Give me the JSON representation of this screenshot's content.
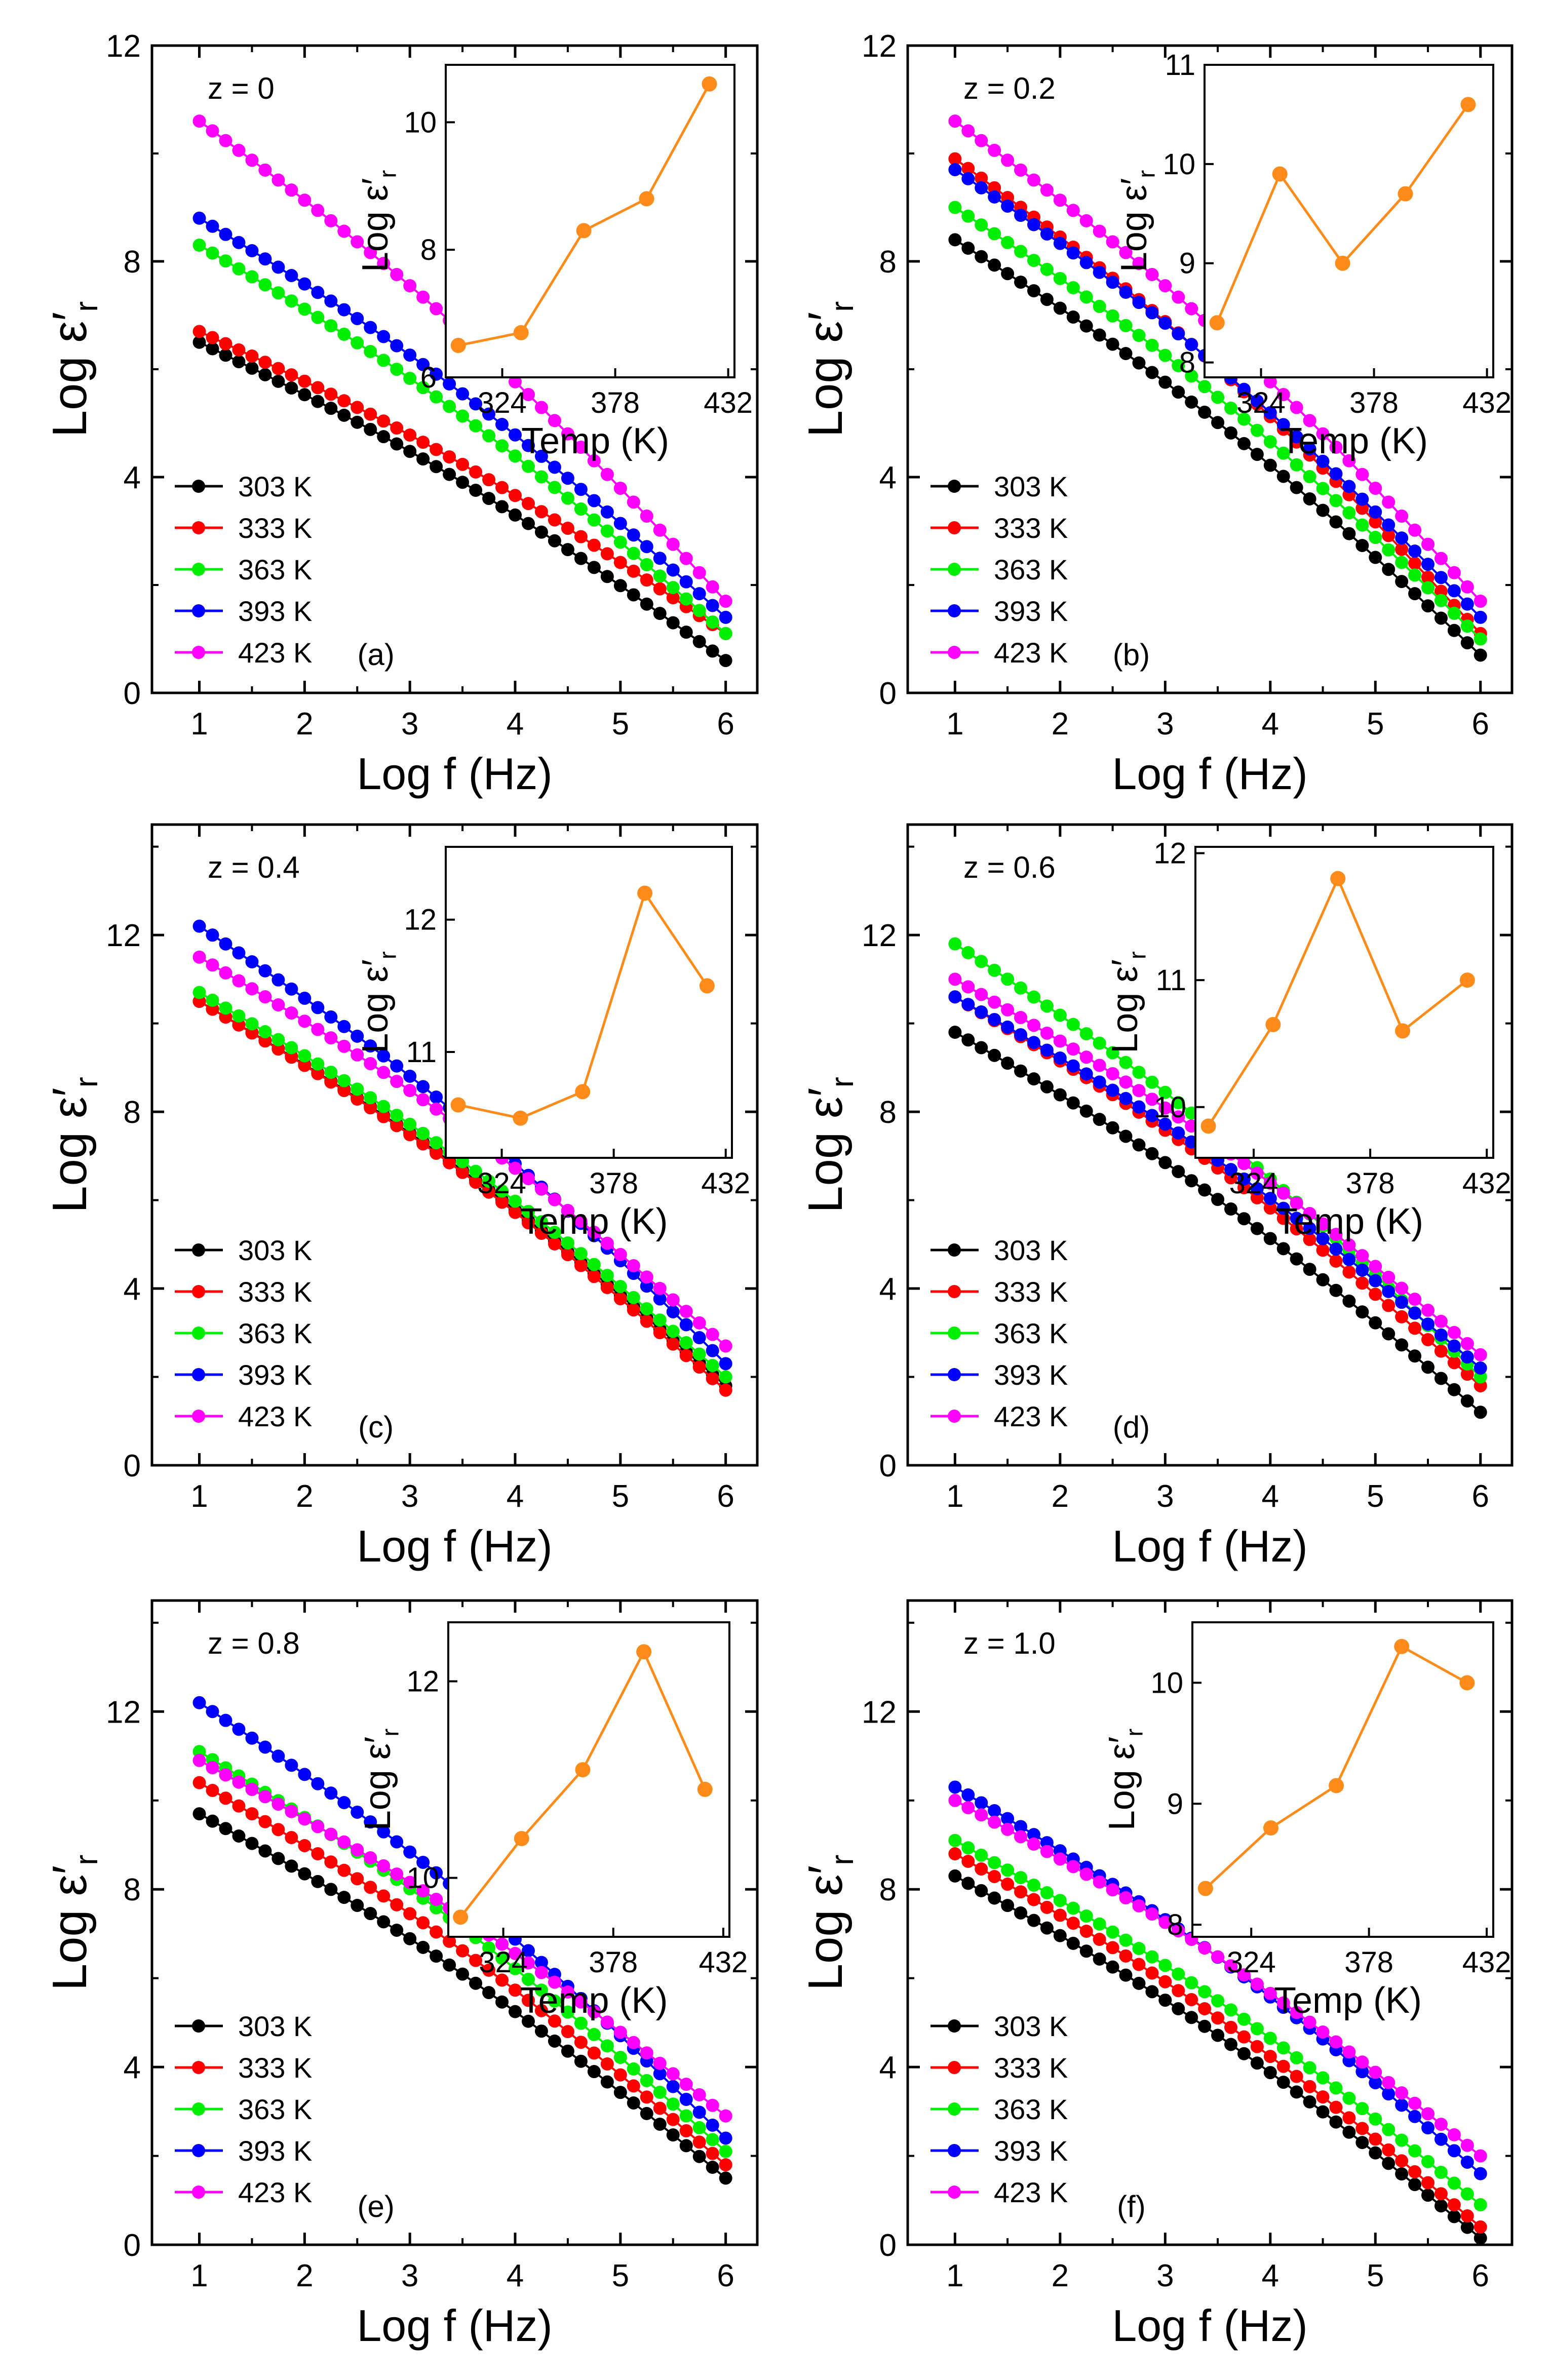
{
  "figure": {
    "xlabel": "Log f (Hz)",
    "ylabel": "Log ε′",
    "ylabel_sub": "r",
    "inset_xlabel": "Temp (K)",
    "inset_ylabel": "Log ε′",
    "inset_ylabel_sub": "r"
  },
  "colors": {
    "303 K": "#000000",
    "333 K": "#ff0000",
    "363 K": "#00ee00",
    "393 K": "#0000ff",
    "423 K": "#ff00ff",
    "inset": "#ff8c1a"
  },
  "chart_data": [
    {
      "type": "line",
      "panel": "(a)",
      "annotation": "z = 0",
      "x": [
        1,
        6
      ],
      "xticks": [
        "1",
        "2",
        "3",
        "4",
        "5",
        "6"
      ],
      "ylim": [
        0,
        12
      ],
      "yticks": [
        "0",
        "4",
        "8",
        "12"
      ],
      "series": [
        {
          "name": "303 K",
          "start": 6.5,
          "end": 0.6
        },
        {
          "name": "333 K",
          "start": 6.7,
          "end": 1.1
        },
        {
          "name": "363 K",
          "start": 8.3,
          "end": 1.1
        },
        {
          "name": "393 K",
          "start": 8.8,
          "end": 1.4
        },
        {
          "name": "423 K",
          "start": 10.6,
          "end": 1.7
        }
      ],
      "inset": {
        "type": "line",
        "x": [
          303,
          333,
          363,
          393,
          423
        ],
        "values": [
          6.5,
          6.7,
          8.3,
          8.8,
          10.6
        ],
        "xlim": [
          297,
          435
        ],
        "xticks": [
          "324",
          "378",
          "432"
        ],
        "xtick_values": [
          324,
          378,
          432
        ],
        "ylim": [
          6,
          10.9
        ],
        "yticks": [
          "6",
          "8",
          "10"
        ],
        "ytick_values": [
          6,
          8,
          10
        ]
      }
    },
    {
      "type": "line",
      "panel": "(b)",
      "annotation": "z = 0.2",
      "x": [
        1,
        6
      ],
      "xticks": [
        "1",
        "2",
        "3",
        "4",
        "5",
        "6"
      ],
      "ylim": [
        0,
        12
      ],
      "yticks": [
        "0",
        "4",
        "8",
        "12"
      ],
      "series": [
        {
          "name": "303 K",
          "start": 8.4,
          "end": 0.7
        },
        {
          "name": "333 K",
          "start": 9.9,
          "end": 1.1
        },
        {
          "name": "363 K",
          "start": 9.0,
          "end": 1.0
        },
        {
          "name": "393 K",
          "start": 9.7,
          "end": 1.4
        },
        {
          "name": "423 K",
          "start": 10.6,
          "end": 1.7
        }
      ],
      "inset": {
        "type": "line",
        "x": [
          303,
          333,
          363,
          393,
          423
        ],
        "values": [
          8.4,
          9.9,
          9.0,
          9.7,
          10.6
        ],
        "xlim": [
          297,
          435
        ],
        "xticks": [
          "324",
          "378",
          "432"
        ],
        "xtick_values": [
          324,
          378,
          432
        ],
        "ylim": [
          7.85,
          11
        ],
        "yticks": [
          "8",
          "9",
          "10",
          "11"
        ],
        "ytick_values": [
          8,
          9,
          10,
          11
        ]
      }
    },
    {
      "type": "line",
      "panel": "(c)",
      "annotation": "z = 0.4",
      "x": [
        1,
        6
      ],
      "xticks": [
        "1",
        "2",
        "3",
        "4",
        "5",
        "6"
      ],
      "ylim": [
        0,
        14.5
      ],
      "yticks": [
        "0",
        "4",
        "8",
        "12"
      ],
      "series": [
        {
          "name": "303 K",
          "start": 10.5,
          "end": 1.8
        },
        {
          "name": "333 K",
          "start": 10.5,
          "end": 1.7
        },
        {
          "name": "363 K",
          "start": 10.7,
          "end": 2.0
        },
        {
          "name": "393 K",
          "start": 12.2,
          "end": 2.3
        },
        {
          "name": "423 K",
          "start": 11.5,
          "end": 2.7
        }
      ],
      "inset": {
        "type": "line",
        "x": [
          303,
          333,
          363,
          393,
          423
        ],
        "values": [
          10.6,
          10.5,
          10.7,
          12.2,
          11.5
        ],
        "xlim": [
          297,
          435
        ],
        "xticks": [
          "324",
          "378",
          "432"
        ],
        "xtick_values": [
          324,
          378,
          432
        ],
        "ylim": [
          10.2,
          12.55
        ],
        "yticks": [
          "11",
          "12"
        ],
        "ytick_values": [
          11,
          12
        ]
      }
    },
    {
      "type": "line",
      "panel": "(d)",
      "annotation": "z = 0.6",
      "x": [
        1,
        6
      ],
      "xticks": [
        "1",
        "2",
        "3",
        "4",
        "5",
        "6"
      ],
      "ylim": [
        0,
        14.5
      ],
      "yticks": [
        "0",
        "4",
        "8",
        "12"
      ],
      "series": [
        {
          "name": "303 K",
          "start": 9.8,
          "end": 1.2
        },
        {
          "name": "333 K",
          "start": 10.6,
          "end": 1.8
        },
        {
          "name": "363 K",
          "start": 11.8,
          "end": 2.0
        },
        {
          "name": "393 K",
          "start": 10.6,
          "end": 2.2
        },
        {
          "name": "423 K",
          "start": 11.0,
          "end": 2.5
        }
      ],
      "inset": {
        "type": "line",
        "x": [
          303,
          333,
          363,
          393,
          423
        ],
        "values": [
          9.85,
          10.65,
          11.8,
          10.6,
          11.0
        ],
        "xlim": [
          297,
          435
        ],
        "xticks": [
          "324",
          "378",
          "432"
        ],
        "xtick_values": [
          324,
          378,
          432
        ],
        "ylim": [
          9.6,
          12.05
        ],
        "yticks": [
          "10",
          "11",
          "12"
        ],
        "ytick_values": [
          10,
          11,
          12
        ]
      }
    },
    {
      "type": "line",
      "panel": "(e)",
      "annotation": "z = 0.8",
      "x": [
        1,
        6
      ],
      "xticks": [
        "1",
        "2",
        "3",
        "4",
        "5",
        "6"
      ],
      "ylim": [
        0,
        14.5
      ],
      "yticks": [
        "0",
        "4",
        "8",
        "12"
      ],
      "series": [
        {
          "name": "303 K",
          "start": 9.7,
          "end": 1.5
        },
        {
          "name": "333 K",
          "start": 10.4,
          "end": 1.8
        },
        {
          "name": "363 K",
          "start": 11.1,
          "end": 2.1
        },
        {
          "name": "393 K",
          "start": 12.2,
          "end": 2.4
        },
        {
          "name": "423 K",
          "start": 10.9,
          "end": 2.9
        }
      ],
      "inset": {
        "type": "line",
        "x": [
          303,
          333,
          363,
          393,
          423
        ],
        "values": [
          9.6,
          10.4,
          11.1,
          12.3,
          10.9
        ],
        "xlim": [
          297,
          435
        ],
        "xticks": [
          "324",
          "378",
          "432"
        ],
        "xtick_values": [
          324,
          378,
          432
        ],
        "ylim": [
          9.4,
          12.6
        ],
        "yticks": [
          "10",
          "12"
        ],
        "ytick_values": [
          10,
          12
        ]
      }
    },
    {
      "type": "line",
      "panel": "(f)",
      "annotation": "z = 1.0",
      "x": [
        1,
        6
      ],
      "xticks": [
        "1",
        "2",
        "3",
        "4",
        "5",
        "6"
      ],
      "ylim": [
        0,
        14.5
      ],
      "yticks": [
        "0",
        "4",
        "8",
        "12"
      ],
      "series": [
        {
          "name": "303 K",
          "start": 8.3,
          "end": 0.15
        },
        {
          "name": "333 K",
          "start": 8.8,
          "end": 0.4
        },
        {
          "name": "363 K",
          "start": 9.1,
          "end": 0.9
        },
        {
          "name": "393 K",
          "start": 10.3,
          "end": 1.6
        },
        {
          "name": "423 K",
          "start": 10.0,
          "end": 2.0
        }
      ],
      "inset": {
        "type": "line",
        "x": [
          303,
          333,
          363,
          393,
          423
        ],
        "values": [
          8.3,
          8.8,
          9.15,
          10.3,
          10.0
        ],
        "xlim": [
          297,
          435
        ],
        "xticks": [
          "324",
          "378",
          "432"
        ],
        "xtick_values": [
          324,
          378,
          432
        ],
        "ylim": [
          7.9,
          10.5
        ],
        "yticks": [
          "8",
          "9",
          "10"
        ],
        "ytick_values": [
          8,
          9,
          10
        ]
      }
    }
  ]
}
